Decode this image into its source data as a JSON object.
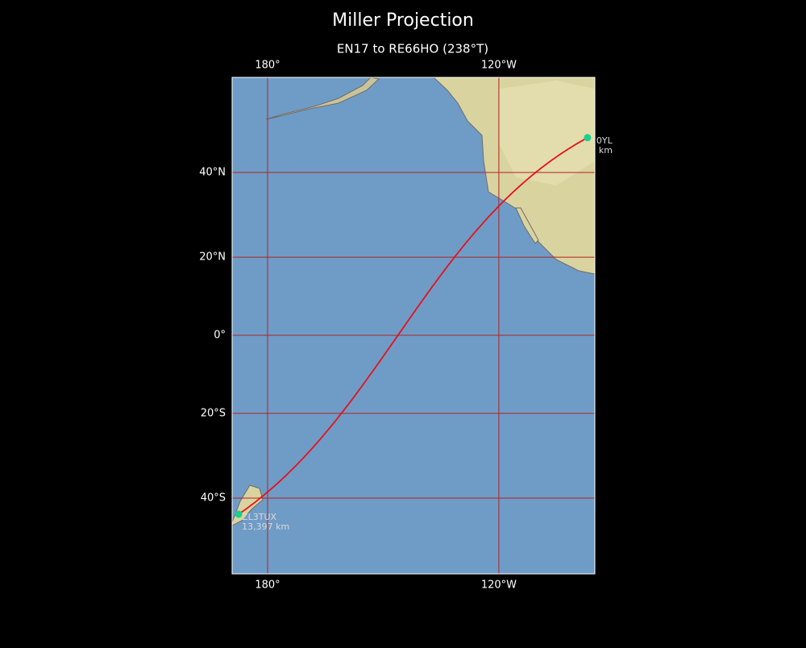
{
  "chart_data": {
    "type": "map",
    "title": "Miller Projection",
    "subtitle": "EN17 to RE66HO (238°T)",
    "projection": "miller",
    "xlim": [
      -189.2,
      -95.1
    ],
    "ylim": [
      -55.4,
      58.9
    ],
    "xticks": [
      {
        "value": -180,
        "label": "180°"
      },
      {
        "value": -120,
        "label": "120°W"
      }
    ],
    "yticks": [
      {
        "value": 40,
        "label": "40°N"
      },
      {
        "value": 20,
        "label": "20°N"
      },
      {
        "value": 0,
        "label": "0°"
      },
      {
        "value": -20,
        "label": "20°S"
      },
      {
        "value": -40,
        "label": "40°S"
      }
    ],
    "grid": true,
    "grid_color": "#b22222",
    "path_color": "#e8101a",
    "marker_color": "#19d18f",
    "stations": [
      {
        "name": "0YL",
        "distance": "km",
        "lat": 47.4,
        "lon": -97.0
      },
      {
        "name": "ZL3TUX",
        "distance": "13,397 km",
        "lat": -43.5,
        "lon": -187.5
      }
    ]
  }
}
